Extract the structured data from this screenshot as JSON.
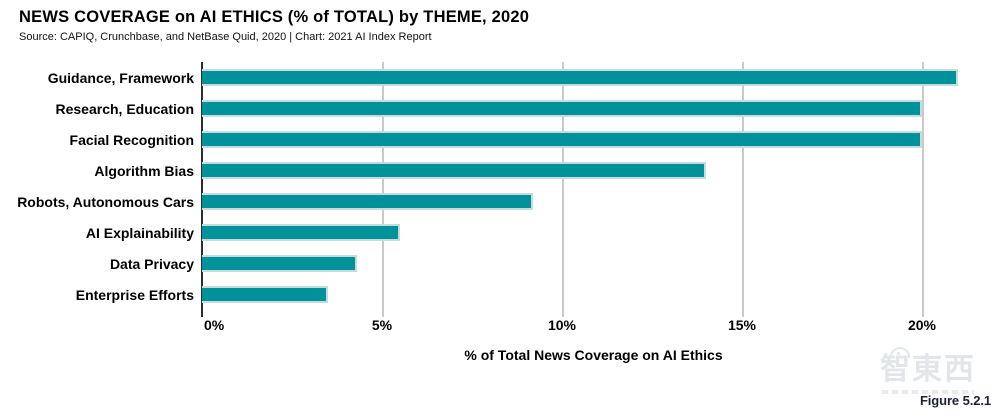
{
  "chart_data": {
    "type": "bar",
    "orientation": "horizontal",
    "title": "NEWS COVERAGE on AI ETHICS (% of TOTAL) by THEME, 2020",
    "source": "Source: CAPIQ, Crunchbase, and NetBase Quid, 2020 | Chart: 2021 AI Index Report",
    "categories": [
      "Guidance, Framework",
      "Research, Education",
      "Facial Recognition",
      "Algorithm Bias",
      "Robots, Autonomous Cars",
      "AI Explainability",
      "Data Privacy",
      "Enterprise Efforts"
    ],
    "values": [
      21.0,
      20.0,
      20.0,
      14.0,
      9.2,
      5.5,
      4.3,
      3.5
    ],
    "xlabel": "% of Total News Coverage on AI Ethics",
    "xticks": [
      0,
      5,
      10,
      15,
      20
    ],
    "xtick_labels": [
      "0%",
      "5%",
      "10%",
      "15%",
      "20%"
    ],
    "xlim": [
      0,
      21.75
    ],
    "grid": true,
    "legend": false,
    "bar_color": "#00929A",
    "bar_border_color": "#c4dcde",
    "gridline_color": "#c9c9c9",
    "axis_color": "#2e2e2e"
  },
  "figure_label": "Figure 5.2.1",
  "watermark": {
    "text": "智東西"
  }
}
